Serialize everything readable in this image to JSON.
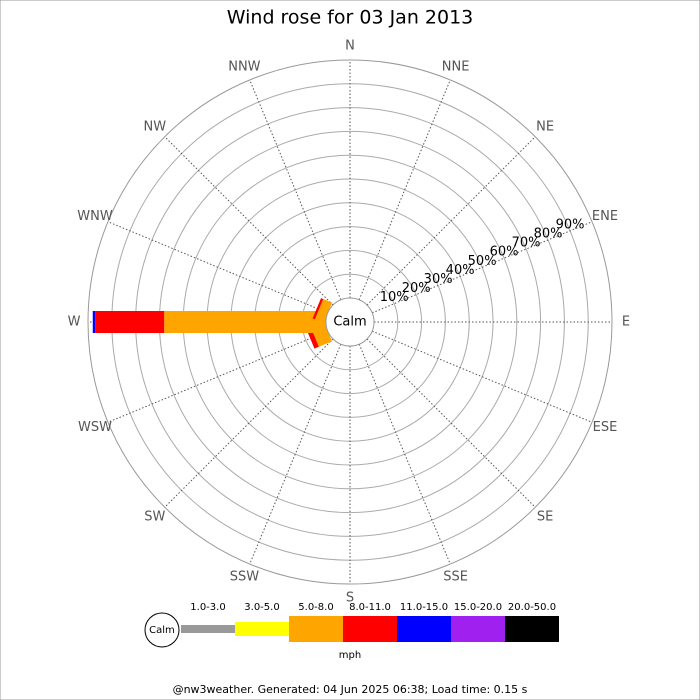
{
  "chart_data": {
    "type": "windrose",
    "title": "Wind rose for 03 Jan 2013",
    "categories": [
      "N",
      "NNE",
      "NE",
      "ENE",
      "E",
      "ESE",
      "SE",
      "SSE",
      "S",
      "SSW",
      "SW",
      "WSW",
      "W",
      "WNW",
      "NW",
      "NNW"
    ],
    "rlim": [
      0,
      100
    ],
    "rticks": [
      {
        "value": 10,
        "label": "10%"
      },
      {
        "value": 20,
        "label": "20%"
      },
      {
        "value": 30,
        "label": "30%"
      },
      {
        "value": 40,
        "label": "40%"
      },
      {
        "value": 50,
        "label": "50%"
      },
      {
        "value": 60,
        "label": "60%"
      },
      {
        "value": 70,
        "label": "70%"
      },
      {
        "value": 80,
        "label": "80%"
      },
      {
        "value": 90,
        "label": "90%"
      }
    ],
    "center_label": "Calm",
    "series": [
      {
        "name": "1.0-3.0",
        "color": "#999999",
        "values": [
          0,
          0,
          0,
          0,
          0,
          0,
          0,
          0,
          0,
          0,
          0,
          0,
          0,
          0,
          0,
          0
        ]
      },
      {
        "name": "3.0-5.0",
        "color": "#ffff00",
        "values": [
          0,
          0,
          0,
          0,
          0,
          0,
          0,
          0,
          0,
          0,
          0,
          0,
          0,
          0,
          0,
          0
        ]
      },
      {
        "name": "5.0-8.0",
        "color": "#ffa500",
        "values": [
          0,
          0,
          0,
          0,
          0,
          0,
          0,
          0,
          0,
          0,
          0,
          6,
          68,
          4,
          0,
          0
        ]
      },
      {
        "name": "8.0-11.0",
        "color": "#ff0000",
        "values": [
          0,
          0,
          0,
          0,
          0,
          0,
          0,
          0,
          0,
          0,
          0,
          2,
          29,
          1,
          0,
          0
        ]
      },
      {
        "name": "11.0-15.0",
        "color": "#0000ff",
        "values": [
          0,
          0,
          0,
          0,
          0,
          0,
          0,
          0,
          0,
          0,
          0,
          0,
          1,
          0,
          0,
          0
        ]
      },
      {
        "name": "15.0-20.0",
        "color": "#a020f0",
        "values": [
          0,
          0,
          0,
          0,
          0,
          0,
          0,
          0,
          0,
          0,
          0,
          0,
          0,
          0,
          0,
          0
        ]
      },
      {
        "name": "20.0-50.0",
        "color": "#000000",
        "values": [
          0,
          0,
          0,
          0,
          0,
          0,
          0,
          0,
          0,
          0,
          0,
          0,
          0,
          0,
          0,
          0
        ]
      }
    ],
    "legend_center_label": "Calm",
    "legend_unit": "mph",
    "footer": "@nw3weather. Generated: 04 Jun 2025 06:38; Load time: 0.15 s"
  }
}
